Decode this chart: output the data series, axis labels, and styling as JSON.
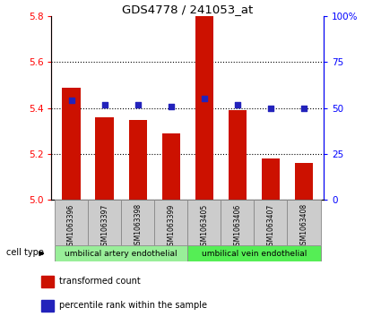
{
  "title": "GDS4778 / 241053_at",
  "samples": [
    "GSM1063396",
    "GSM1063397",
    "GSM1063398",
    "GSM1063399",
    "GSM1063405",
    "GSM1063406",
    "GSM1063407",
    "GSM1063408"
  ],
  "transformed_count": [
    5.49,
    5.36,
    5.35,
    5.29,
    5.8,
    5.39,
    5.18,
    5.16
  ],
  "percentile_rank": [
    54,
    52,
    52,
    51,
    55,
    52,
    50,
    50
  ],
  "ylim_left": [
    5.0,
    5.8
  ],
  "ylim_right": [
    0,
    100
  ],
  "yticks_left": [
    5.0,
    5.2,
    5.4,
    5.6,
    5.8
  ],
  "yticks_right": [
    0,
    25,
    50,
    75,
    100
  ],
  "ytick_labels_right": [
    "0",
    "25",
    "50",
    "75",
    "100%"
  ],
  "bar_color": "#cc1100",
  "dot_color": "#2222bb",
  "cell_type_groups": [
    {
      "label": "umbilical artery endothelial",
      "indices": [
        0,
        1,
        2,
        3
      ],
      "color": "#99ee99"
    },
    {
      "label": "umbilical vein endothelial",
      "indices": [
        4,
        5,
        6,
        7
      ],
      "color": "#55ee55"
    }
  ],
  "cell_type_label": "cell type",
  "legend_items": [
    {
      "label": "transformed count",
      "color": "#cc1100"
    },
    {
      "label": "percentile rank within the sample",
      "color": "#2222bb"
    }
  ],
  "cell_bg_color": "#cccccc"
}
